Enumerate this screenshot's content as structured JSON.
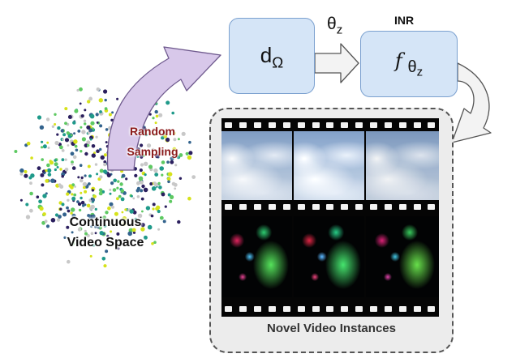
{
  "cloud": {
    "label_line1": "Continuous",
    "label_line2": "Video Space",
    "colors": [
      "#2b1f5e",
      "#33638d",
      "#1f9a8a",
      "#5ec962",
      "#d6e21a",
      "#c8c8c8"
    ]
  },
  "sampling": {
    "line1": "Random",
    "line2": "Sampling"
  },
  "d_box": {
    "main": "d",
    "sub": "Ω"
  },
  "theta": {
    "main": "θ",
    "sub": "z"
  },
  "inr": {
    "title": "INR",
    "main": "f",
    "sub_main": "θ",
    "sub_sub": "z"
  },
  "panel": {
    "caption": "Novel Video Instances"
  },
  "colors": {
    "box_fill": "#d5e5f7",
    "box_border": "#7aa0cf",
    "sampling_arrow": "#d8c8ea",
    "sampling_label": "#8b1a1a",
    "panel_fill": "#ececec"
  }
}
